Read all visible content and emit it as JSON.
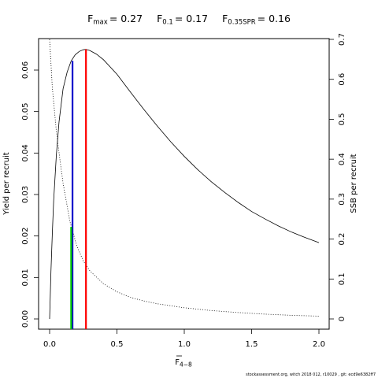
{
  "chart_data": {
    "type": "line",
    "title_parts": {
      "fmax_label": "F",
      "fmax_sub": "max",
      "fmax_value": "= 0.27",
      "f01_label": "F",
      "f01_sub": "0.1",
      "f01_value": "= 0.17",
      "fspr_label": "F",
      "fspr_sub": "0.35SPR",
      "fspr_value": "= 0.16"
    },
    "xlabel_main": "F",
    "xlabel_sub": "4−8",
    "ylabel_left": "Yield per recruit",
    "ylabel_right": "SSB per recruit",
    "xlim": [
      0,
      2
    ],
    "ylim_left": [
      0,
      0.065
    ],
    "ylim_right": [
      0,
      0.7
    ],
    "x_ticks": [
      "0.0",
      "0.5",
      "1.0",
      "1.5",
      "2.0"
    ],
    "y_left_ticks": [
      "0.00",
      "0.01",
      "0.02",
      "0.03",
      "0.04",
      "0.05",
      "0.06"
    ],
    "y_right_ticks": [
      "0",
      "0.1",
      "0.2",
      "0.3",
      "0.4",
      "0.5",
      "0.6",
      "0.7"
    ],
    "series": [
      {
        "axis": "left",
        "style": "solid",
        "x": [
          0,
          0.01,
          0.02,
          0.03,
          0.05,
          0.07,
          0.1,
          0.13,
          0.16,
          0.19,
          0.22,
          0.25,
          0.27,
          0.3,
          0.35,
          0.4,
          0.5,
          0.6,
          0.7,
          0.8,
          0.9,
          1.0,
          1.1,
          1.2,
          1.3,
          1.4,
          1.5,
          1.6,
          1.7,
          1.8,
          1.9,
          2.0
        ],
        "y": [
          0,
          0.0115,
          0.0205,
          0.0285,
          0.0395,
          0.0475,
          0.0555,
          0.0595,
          0.0622,
          0.0637,
          0.0645,
          0.0649,
          0.065,
          0.0647,
          0.0638,
          0.0625,
          0.059,
          0.0547,
          0.0505,
          0.0465,
          0.0427,
          0.0392,
          0.036,
          0.0331,
          0.0305,
          0.0281,
          0.0259,
          0.0241,
          0.0224,
          0.0209,
          0.0196,
          0.0184
        ]
      },
      {
        "axis": "right",
        "style": "dotted",
        "x": [
          0,
          0.02,
          0.05,
          0.08,
          0.1,
          0.15,
          0.2,
          0.25,
          0.3,
          0.4,
          0.5,
          0.6,
          0.7,
          0.8,
          1.0,
          1.2,
          1.4,
          1.6,
          1.8,
          2.0
        ],
        "y": [
          0.7,
          0.58,
          0.47,
          0.39,
          0.34,
          0.245,
          0.185,
          0.145,
          0.12,
          0.088,
          0.068,
          0.054,
          0.045,
          0.038,
          0.028,
          0.021,
          0.016,
          0.012,
          0.009,
          0.007
        ]
      }
    ],
    "reference_lines": [
      {
        "name": "Fmax",
        "x": 0.27,
        "y_top": 0.065,
        "color": "#ff0000"
      },
      {
        "name": "F0.1",
        "x": 0.17,
        "y_top": 0.0622,
        "color": "#0000cc"
      },
      {
        "name": "F0.35SPR",
        "x": 0.16,
        "y_top": 0.0222,
        "color": "#00cc00"
      }
    ],
    "footer": "stockassessment.org, witch  2018 012, r10029 ,  git: ecd9e6382ff7"
  }
}
